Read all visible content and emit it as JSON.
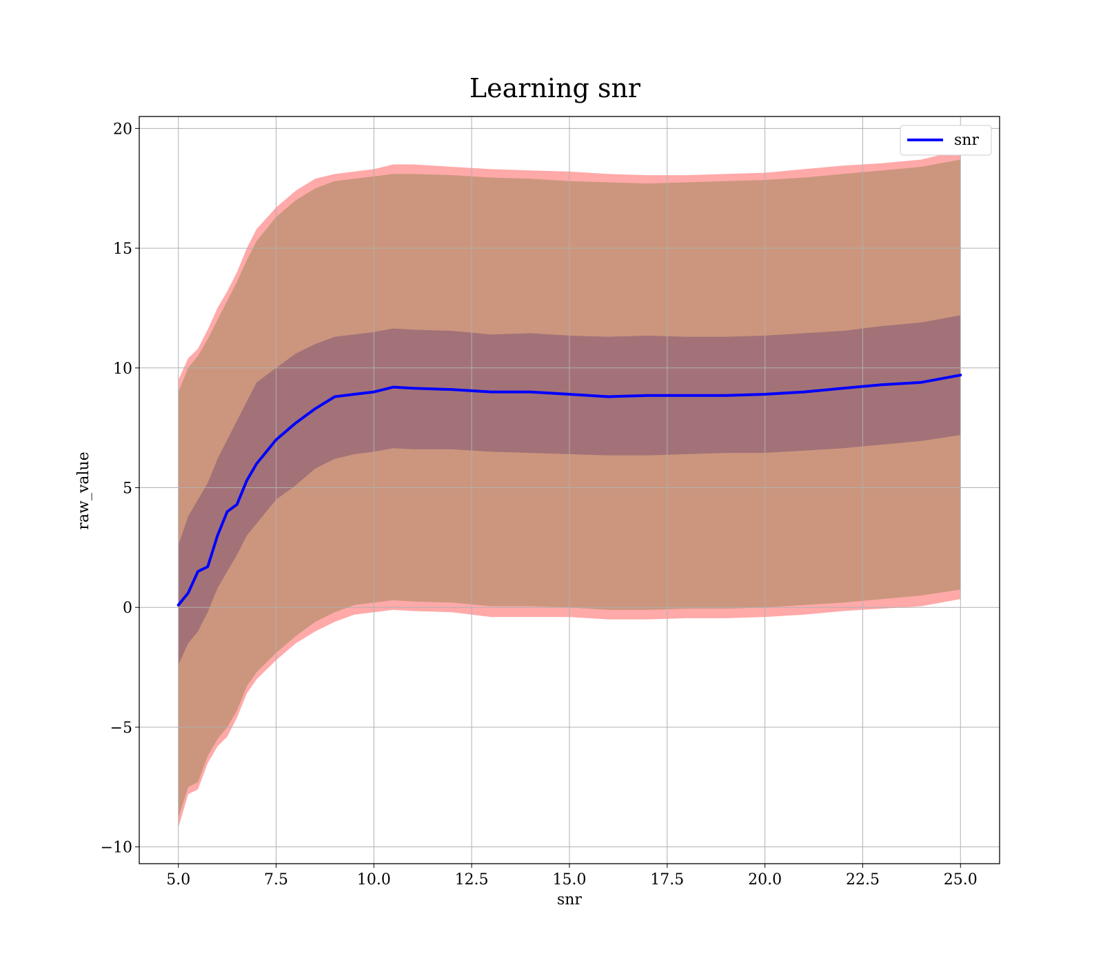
{
  "chart_data": {
    "type": "line",
    "title": "Learning snr",
    "xlabel": "snr",
    "ylabel": "raw_value",
    "xlim": [
      4.0,
      26.0
    ],
    "ylim": [
      -10.7,
      20.5
    ],
    "xticks": [
      "5.0",
      "7.5",
      "10.0",
      "12.5",
      "15.0",
      "17.5",
      "20.0",
      "22.5",
      "25.0"
    ],
    "yticks": [
      "−10",
      "−5",
      "0",
      "5",
      "10",
      "15",
      "20"
    ],
    "grid": true,
    "legend": {
      "position": "top-right",
      "entries": [
        "snr"
      ]
    },
    "colors": {
      "line": "#0000ff",
      "band_outer": "#ff9a9a",
      "band_outer_inner": "#c8957a",
      "band_inner": "#a07078",
      "grid": "#b0b0b0"
    },
    "x": [
      5.0,
      5.25,
      5.5,
      5.75,
      6.0,
      6.25,
      6.5,
      6.75,
      7.0,
      7.5,
      8.0,
      8.5,
      9.0,
      9.5,
      10.0,
      10.5,
      11.0,
      12.0,
      13.0,
      14.0,
      15.0,
      16.0,
      17.0,
      18.0,
      19.0,
      20.0,
      21.0,
      22.0,
      23.0,
      24.0,
      25.0
    ],
    "series": [
      {
        "name": "snr",
        "values": [
          0.1,
          0.6,
          1.5,
          1.7,
          3.0,
          4.0,
          4.3,
          5.3,
          6.0,
          7.0,
          7.7,
          8.3,
          8.8,
          8.9,
          9.0,
          9.2,
          9.15,
          9.1,
          9.0,
          9.0,
          8.9,
          8.8,
          8.85,
          8.85,
          8.85,
          8.9,
          9.0,
          9.15,
          9.3,
          9.4,
          9.7
        ]
      }
    ],
    "bands": [
      {
        "level": "outer",
        "upper": [
          9.5,
          10.4,
          10.8,
          11.6,
          12.5,
          13.2,
          14.0,
          15.0,
          15.8,
          16.7,
          17.4,
          17.9,
          18.1,
          18.2,
          18.3,
          18.5,
          18.5,
          18.4,
          18.3,
          18.25,
          18.2,
          18.1,
          18.05,
          18.05,
          18.1,
          18.15,
          18.3,
          18.45,
          18.55,
          18.7,
          19.1
        ],
        "lower": [
          -9.2,
          -7.8,
          -7.6,
          -6.5,
          -5.8,
          -5.4,
          -4.6,
          -3.6,
          -3.0,
          -2.2,
          -1.5,
          -1.0,
          -0.6,
          -0.3,
          -0.2,
          -0.1,
          -0.15,
          -0.2,
          -0.4,
          -0.4,
          -0.4,
          -0.5,
          -0.5,
          -0.45,
          -0.45,
          -0.4,
          -0.3,
          -0.15,
          -0.05,
          0.05,
          0.35
        ]
      },
      {
        "level": "outer_inner",
        "upper": [
          9.0,
          10.0,
          10.5,
          11.2,
          12.0,
          12.8,
          13.6,
          14.5,
          15.3,
          16.3,
          17.0,
          17.5,
          17.8,
          17.9,
          18.0,
          18.1,
          18.1,
          18.05,
          17.95,
          17.9,
          17.8,
          17.75,
          17.7,
          17.75,
          17.8,
          17.85,
          17.95,
          18.1,
          18.25,
          18.4,
          18.7
        ],
        "lower": [
          -8.8,
          -7.5,
          -7.3,
          -6.2,
          -5.5,
          -5.0,
          -4.3,
          -3.3,
          -2.7,
          -1.9,
          -1.2,
          -0.6,
          -0.2,
          0.1,
          0.2,
          0.3,
          0.25,
          0.2,
          0.05,
          0.05,
          0.0,
          -0.1,
          -0.1,
          -0.05,
          -0.05,
          0.0,
          0.1,
          0.2,
          0.35,
          0.5,
          0.75
        ]
      },
      {
        "level": "inner",
        "upper": [
          2.6,
          3.8,
          4.5,
          5.2,
          6.2,
          7.0,
          7.8,
          8.6,
          9.4,
          10.0,
          10.6,
          11.0,
          11.3,
          11.4,
          11.5,
          11.65,
          11.6,
          11.55,
          11.4,
          11.45,
          11.35,
          11.3,
          11.35,
          11.3,
          11.3,
          11.35,
          11.45,
          11.55,
          11.75,
          11.9,
          12.2
        ],
        "lower": [
          -2.4,
          -1.5,
          -1.0,
          -0.2,
          0.8,
          1.5,
          2.2,
          3.0,
          3.5,
          4.5,
          5.1,
          5.8,
          6.2,
          6.4,
          6.5,
          6.65,
          6.6,
          6.6,
          6.5,
          6.45,
          6.4,
          6.35,
          6.35,
          6.4,
          6.45,
          6.45,
          6.55,
          6.65,
          6.8,
          6.95,
          7.2
        ]
      }
    ]
  }
}
